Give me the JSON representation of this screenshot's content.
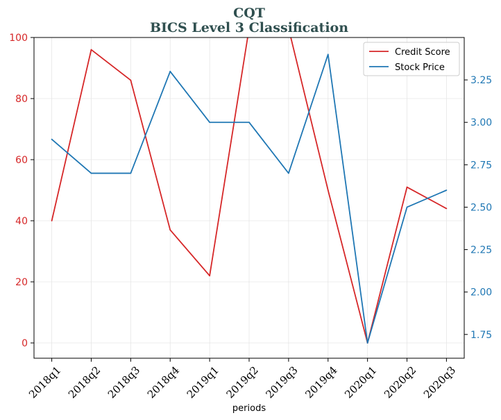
{
  "chart_data": {
    "type": "line",
    "title": "CQT",
    "subtitle": "BICS Level 3 Classification",
    "xlabel": "periods",
    "categories": [
      "2018q1",
      "2018q2",
      "2018q3",
      "2018q4",
      "2019q1",
      "2019q2",
      "2019q3",
      "2019q4",
      "2020q1",
      "2020q2",
      "2020q3"
    ],
    "series": [
      {
        "name": "Credit Score",
        "axis": "left",
        "color": "#d62728",
        "values": [
          40,
          96,
          86,
          37,
          22,
          103,
          103,
          50,
          0,
          51,
          44
        ]
      },
      {
        "name": "Stock Price",
        "axis": "right",
        "color": "#1f77b4",
        "values": [
          2.9,
          2.7,
          2.7,
          3.3,
          3.0,
          3.0,
          2.7,
          3.4,
          1.7,
          2.5,
          2.6
        ]
      }
    ],
    "y_left": {
      "ylim": [
        -5,
        100
      ],
      "ticks": [
        "0",
        "20",
        "40",
        "60",
        "80",
        "100"
      ],
      "tick_values": [
        0,
        20,
        40,
        60,
        80,
        100
      ],
      "color": "#d62728"
    },
    "y_right": {
      "ylim": [
        1.61,
        3.5
      ],
      "ticks": [
        "1.75",
        "2.00",
        "2.25",
        "2.50",
        "2.75",
        "3.00",
        "3.25"
      ],
      "tick_values": [
        1.75,
        2.0,
        2.25,
        2.5,
        2.75,
        3.0,
        3.25
      ],
      "color": "#1f77b4"
    },
    "grid": true,
    "legend": "top-right"
  }
}
